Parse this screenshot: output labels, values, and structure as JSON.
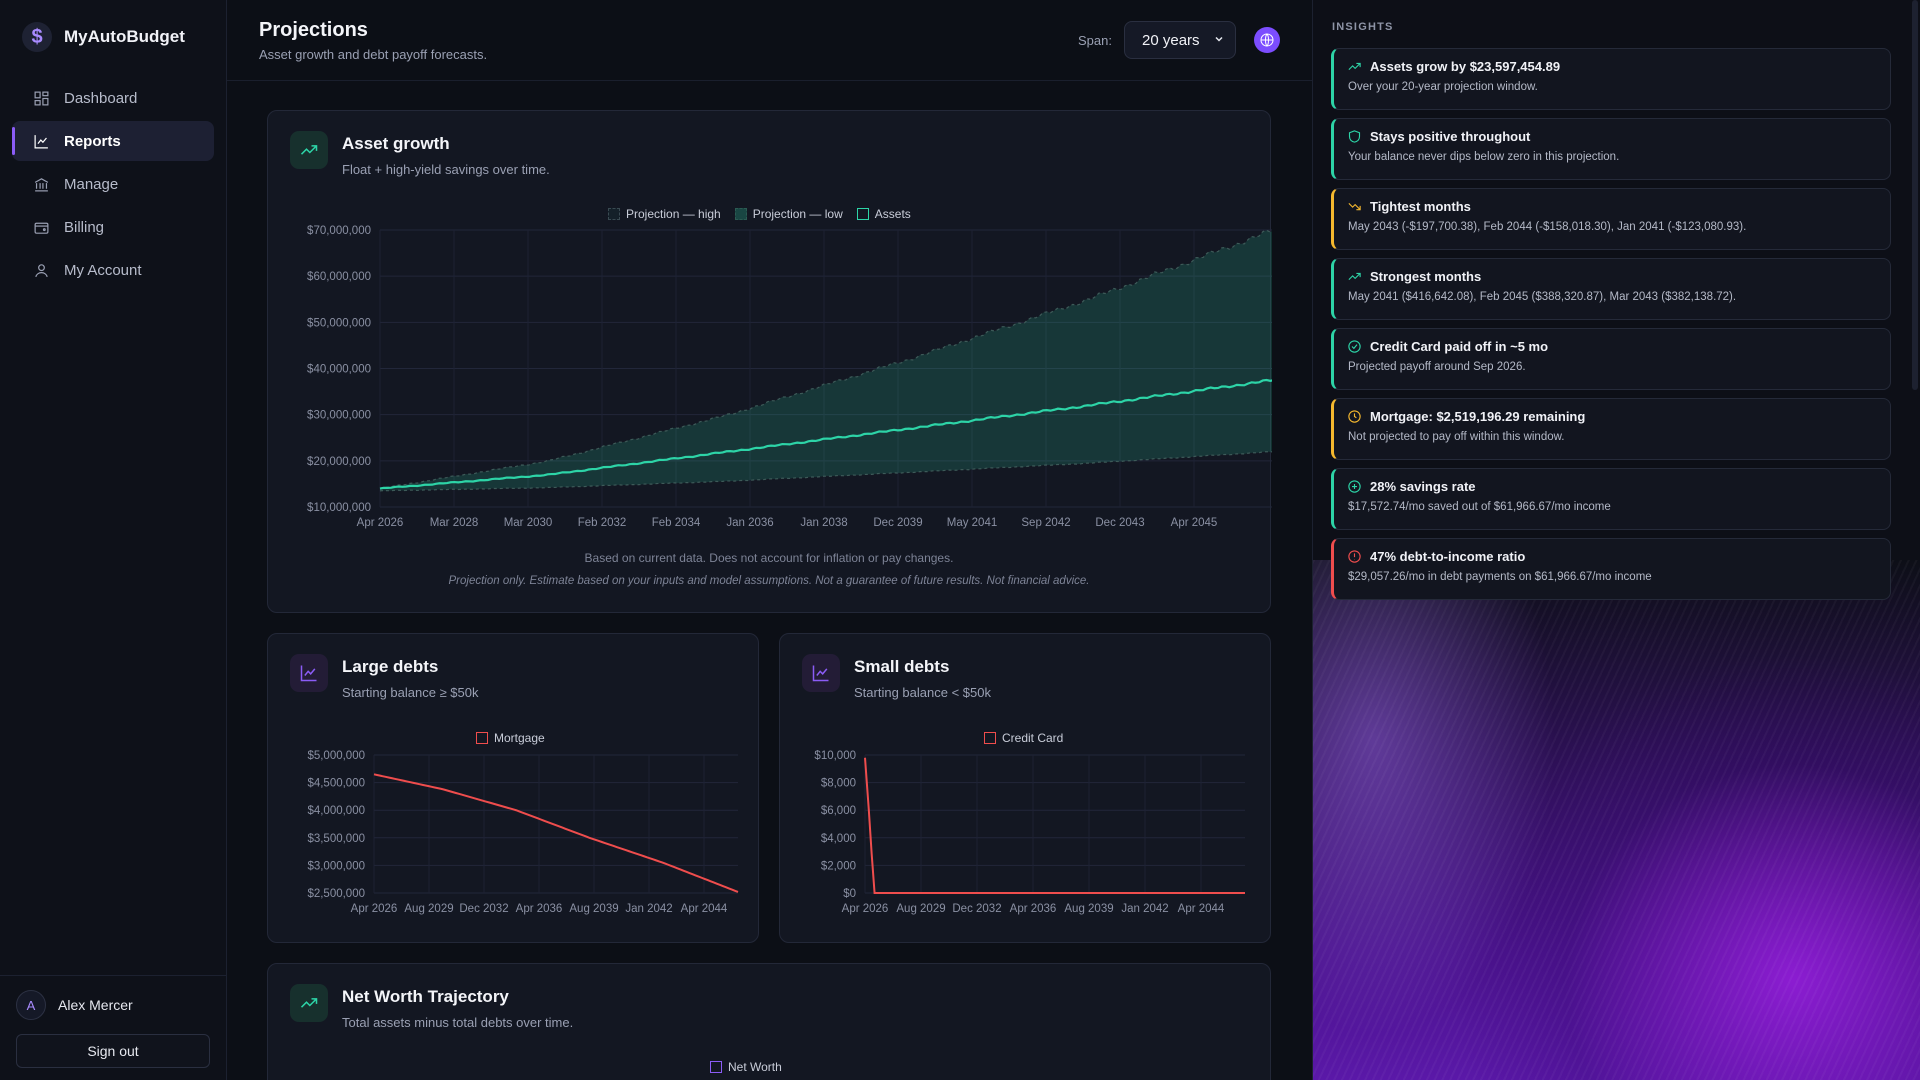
{
  "app": {
    "name": "MyAutoBudget",
    "logo_glyph": "$"
  },
  "nav": [
    {
      "label": "Dashboard",
      "icon": "dashboard-icon",
      "active": false
    },
    {
      "label": "Reports",
      "icon": "reports-icon",
      "active": true
    },
    {
      "label": "Manage",
      "icon": "bank-icon",
      "active": false
    },
    {
      "label": "Billing",
      "icon": "wallet-icon",
      "active": false
    },
    {
      "label": "My Account",
      "icon": "user-icon",
      "active": false
    }
  ],
  "user": {
    "initial": "A",
    "name": "Alex Mercer",
    "signout_label": "Sign out"
  },
  "header": {
    "title": "Projections",
    "subtitle": "Asset growth and debt payoff forecasts.",
    "span_label": "Span:",
    "span_value": "20 years"
  },
  "colors": {
    "accent": "#8b5cf6",
    "asset": "#2dd4a7",
    "debt": "#ef4d4d",
    "networth": "#8b5cf6"
  },
  "cards": {
    "asset": {
      "title": "Asset growth",
      "subtitle": "Float + high-yield savings over time.",
      "legend": [
        "Projection — high",
        "Projection — low",
        "Assets"
      ],
      "note": "Based on current data. Does not account for inflation or pay changes.",
      "disclaimer": "Projection only. Estimate based on your inputs and model assumptions. Not a guarantee of future results. Not financial advice."
    },
    "large": {
      "title": "Large debts",
      "subtitle": "Starting balance ≥ $50k",
      "legend": [
        "Mortgage"
      ]
    },
    "small": {
      "title": "Small debts",
      "subtitle": "Starting balance < $50k",
      "legend": [
        "Credit Card"
      ]
    },
    "networth": {
      "title": "Net Worth Trajectory",
      "subtitle": "Total assets minus total debts over time.",
      "legend": [
        "Net Worth"
      ]
    }
  },
  "chart_data": [
    {
      "type": "area",
      "id": "asset",
      "x_ticks": [
        "Apr 2026",
        "Mar 2028",
        "Mar 2030",
        "Feb 2032",
        "Feb 2034",
        "Jan 2036",
        "Jan 2038",
        "Dec 2039",
        "May 2041",
        "Sep 2042",
        "Dec 2043",
        "Apr 2045"
      ],
      "y_ticks": [
        "$10,000,000",
        "$20,000,000",
        "$30,000,000",
        "$40,000,000",
        "$50,000,000",
        "$60,000,000",
        "$70,000,000"
      ],
      "ylim": [
        10000000,
        70000000
      ],
      "x_range_years": [
        2026.25,
        2046.1
      ],
      "series": [
        {
          "name": "Projection — high",
          "x": [
            2026.25,
            2030,
            2034,
            2038,
            2042,
            2046.1
          ],
          "y": [
            14000000,
            20000000,
            30000000,
            42000000,
            55000000,
            70000000
          ]
        },
        {
          "name": "Projection — low",
          "x": [
            2026.25,
            2030,
            2034,
            2038,
            2042,
            2046.1
          ],
          "y": [
            13500000,
            14200000,
            15600000,
            17500000,
            19500000,
            22000000
          ]
        },
        {
          "name": "Assets",
          "x": [
            2026.25,
            2030,
            2034,
            2038,
            2042,
            2046.1
          ],
          "y": [
            14000000,
            17000000,
            22000000,
            27000000,
            32000000,
            37500000
          ]
        }
      ]
    },
    {
      "type": "line",
      "id": "large",
      "x_ticks": [
        "Apr 2026",
        "Aug 2029",
        "Dec 2032",
        "Apr 2036",
        "Aug 2039",
        "Jan 2042",
        "Apr 2044"
      ],
      "y_ticks": [
        "$2,500,000",
        "$3,000,000",
        "$3,500,000",
        "$4,000,000",
        "$4,500,000",
        "$5,000,000"
      ],
      "ylim": [
        2500000,
        5000000
      ],
      "x_range_years": [
        2026.25,
        2046.1
      ],
      "series": [
        {
          "name": "Mortgage",
          "x": [
            2026.25,
            2030,
            2034,
            2038,
            2042,
            2046.1
          ],
          "y": [
            4650000,
            4380000,
            4000000,
            3500000,
            3050000,
            2519196
          ]
        }
      ]
    },
    {
      "type": "line",
      "id": "small",
      "x_ticks": [
        "Apr 2026",
        "Aug 2029",
        "Dec 2032",
        "Apr 2036",
        "Aug 2039",
        "Jan 2042",
        "Apr 2044"
      ],
      "y_ticks": [
        "$0",
        "$2,000",
        "$4,000",
        "$6,000",
        "$8,000",
        "$10,000"
      ],
      "ylim": [
        0,
        10000
      ],
      "x_range_years": [
        2026.25,
        2046.1
      ],
      "series": [
        {
          "name": "Credit Card",
          "x": [
            2026.25,
            2026.45,
            2026.6,
            2026.75,
            2027,
            2046.1
          ],
          "y": [
            9800,
            6000,
            2800,
            0,
            0,
            0
          ]
        }
      ]
    }
  ],
  "insights": {
    "label": "INSIGHTS",
    "items": [
      {
        "title": "Assets grow by $23,597,454.89",
        "desc": "Over your 20-year projection window.",
        "icon": "trending-up-icon",
        "color": "#2dd4a7"
      },
      {
        "title": "Stays positive throughout",
        "desc": "Your balance never dips below zero in this projection.",
        "icon": "shield-icon",
        "color": "#2dd4a7"
      },
      {
        "title": "Tightest months",
        "desc": "May 2043 (-$197,700.38), Feb 2044 (-$158,018.30), Jan 2041 (-$123,080.93).",
        "icon": "trending-down-icon",
        "color": "#f5b82e"
      },
      {
        "title": "Strongest months",
        "desc": "May 2041 ($416,642.08), Feb 2045 ($388,320.87), Mar 2043 ($382,138.72).",
        "icon": "trending-up-icon",
        "color": "#2dd4a7"
      },
      {
        "title": "Credit Card paid off in ~5 mo",
        "desc": "Projected payoff around Sep 2026.",
        "icon": "check-circle-icon",
        "color": "#2dd4a7"
      },
      {
        "title": "Mortgage: $2,519,196.29 remaining",
        "desc": "Not projected to pay off within this window.",
        "icon": "clock-icon",
        "color": "#f5b82e"
      },
      {
        "title": "28% savings rate",
        "desc": "$17,572.74/mo saved out of $61,966.67/mo income",
        "icon": "plus-circle-icon",
        "color": "#2dd4a7"
      },
      {
        "title": "47% debt-to-income ratio",
        "desc": "$29,057.26/mo in debt payments on $61,966.67/mo income",
        "icon": "alert-circle-icon",
        "color": "#ef4d4d"
      }
    ]
  }
}
